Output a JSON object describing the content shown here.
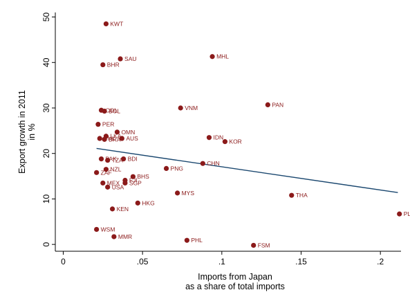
{
  "chart_data": {
    "type": "scatter",
    "xlabel": [
      "Imports from Japan",
      "as a share of total imports"
    ],
    "ylabel": [
      "Export growth in 2011",
      "in %"
    ],
    "xlim": [
      -0.005,
      0.213
    ],
    "ylim": [
      -1.5,
      51
    ],
    "x_ticks": [
      0,
      0.05,
      0.1,
      0.15,
      0.2
    ],
    "x_tick_labels": [
      "0",
      ".05",
      ".1",
      ".15",
      ".2"
    ],
    "y_ticks": [
      0,
      10,
      20,
      30,
      40,
      50
    ],
    "y_tick_labels": [
      "0",
      "10",
      "20",
      "30",
      "40",
      "50"
    ],
    "grid": false,
    "marker_color": "#8b1a1a",
    "fit_line_color": "#1a476f",
    "fit_line": {
      "x": [
        0.021,
        0.211
      ],
      "y": [
        21.1,
        11.4
      ]
    },
    "points": [
      {
        "label": "KWT",
        "x": 0.027,
        "y": 48.5
      },
      {
        "label": "MHL",
        "x": 0.094,
        "y": 41.3
      },
      {
        "label": "SAU",
        "x": 0.036,
        "y": 40.8
      },
      {
        "label": "BHR",
        "x": 0.025,
        "y": 39.5
      },
      {
        "label": "PAN",
        "x": 0.129,
        "y": 30.7
      },
      {
        "label": "VNM",
        "x": 0.074,
        "y": 30.0
      },
      {
        "label": "COL",
        "x": 0.024,
        "y": 29.5
      },
      {
        "label": "BOL",
        "x": 0.026,
        "y": 29.3
      },
      {
        "label": "PER",
        "x": 0.022,
        "y": 26.4
      },
      {
        "label": "OMN",
        "x": 0.034,
        "y": 24.7
      },
      {
        "label": "LKA",
        "x": 0.027,
        "y": 23.8
      },
      {
        "label": "IDN",
        "x": 0.092,
        "y": 23.5
      },
      {
        "label": "AUS",
        "x": 0.037,
        "y": 23.3
      },
      {
        "label": "PHL",
        "x": 0.023,
        "y": 23.3
      },
      {
        "label": "BRA",
        "x": 0.026,
        "y": 23.1
      },
      {
        "label": "KOR",
        "x": 0.102,
        "y": 22.6
      },
      {
        "label": "PAK",
        "x": 0.024,
        "y": 18.8
      },
      {
        "label": "BDI",
        "x": 0.038,
        "y": 18.8
      },
      {
        "label": "TZA",
        "x": 0.028,
        "y": 18.5
      },
      {
        "label": "CHN",
        "x": 0.088,
        "y": 17.8
      },
      {
        "label": "PNG",
        "x": 0.065,
        "y": 16.7
      },
      {
        "label": "NZL",
        "x": 0.027,
        "y": 16.5
      },
      {
        "label": "ZAF",
        "x": 0.021,
        "y": 15.8
      },
      {
        "label": "BHS",
        "x": 0.044,
        "y": 14.9
      },
      {
        "label": "FJI",
        "x": 0.039,
        "y": 14.1
      },
      {
        "label": "SGP",
        "x": 0.039,
        "y": 13.5
      },
      {
        "label": "MEX",
        "x": 0.025,
        "y": 13.5
      },
      {
        "label": "USA",
        "x": 0.028,
        "y": 12.6
      },
      {
        "label": "MYS",
        "x": 0.072,
        "y": 11.3
      },
      {
        "label": "THA",
        "x": 0.144,
        "y": 10.8
      },
      {
        "label": "HKG",
        "x": 0.047,
        "y": 9.1
      },
      {
        "label": "KEN",
        "x": 0.031,
        "y": 7.8
      },
      {
        "label": "PLW",
        "x": 0.212,
        "y": 6.7
      },
      {
        "label": "WSM",
        "x": 0.021,
        "y": 3.3
      },
      {
        "label": "MMR",
        "x": 0.032,
        "y": 1.7
      },
      {
        "label": "PHL",
        "x": 0.078,
        "y": 0.9
      },
      {
        "label": "FSM",
        "x": 0.12,
        "y": -0.2
      }
    ]
  }
}
